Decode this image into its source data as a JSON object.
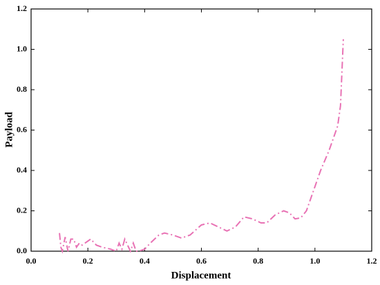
{
  "chart_data": {
    "type": "line",
    "x_label": "Displacement",
    "y_label": "Payload",
    "x": [
      0.1,
      0.105,
      0.11,
      0.12,
      0.13,
      0.14,
      0.15,
      0.16,
      0.17,
      0.18,
      0.2,
      0.21,
      0.23,
      0.25,
      0.28,
      0.3,
      0.31,
      0.32,
      0.33,
      0.34,
      0.35,
      0.36,
      0.37,
      0.38,
      0.4,
      0.42,
      0.45,
      0.47,
      0.5,
      0.53,
      0.56,
      0.6,
      0.63,
      0.66,
      0.69,
      0.72,
      0.75,
      0.78,
      0.81,
      0.83,
      0.86,
      0.89,
      0.91,
      0.93,
      0.95,
      0.97,
      1.0,
      1.02,
      1.05,
      1.08,
      1.09,
      1.1
    ],
    "values": [
      0.09,
      0.02,
      0.0,
      0.07,
      0.0,
      0.06,
      0.06,
      0.02,
      0.04,
      0.03,
      0.05,
      0.06,
      0.03,
      0.02,
      0.01,
      0.0,
      0.04,
      0.01,
      0.06,
      0.03,
      0.0,
      0.04,
      0.0,
      0.0,
      0.01,
      0.04,
      0.08,
      0.09,
      0.08,
      0.065,
      0.08,
      0.13,
      0.14,
      0.12,
      0.1,
      0.12,
      0.17,
      0.16,
      0.14,
      0.14,
      0.18,
      0.2,
      0.19,
      0.16,
      0.165,
      0.2,
      0.32,
      0.4,
      0.5,
      0.62,
      0.72,
      1.05
    ],
    "color": "#e872b4",
    "xlim": [
      0,
      1.2
    ],
    "ylim": [
      0,
      1.2
    ],
    "xticks": [
      {
        "value": 0,
        "label": "0.0"
      },
      0.2,
      0.4,
      0.6,
      0.8,
      {
        "value": 1,
        "label": "1.0"
      },
      1.2
    ],
    "yticks": [
      {
        "value": 0,
        "label": "0.0"
      },
      0.2,
      0.4,
      0.6,
      0.8,
      {
        "value": 1,
        "label": "1.0"
      },
      1.2
    ]
  }
}
